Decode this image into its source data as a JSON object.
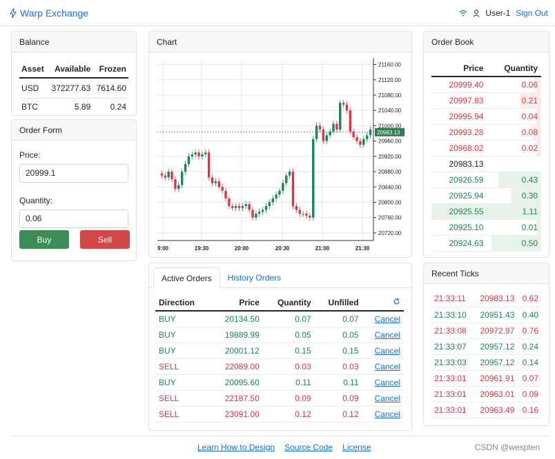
{
  "nav": {
    "brand": "Warp Exchange",
    "user": "User-1",
    "signout": "Sign Out"
  },
  "balance": {
    "title": "Balance",
    "headers": [
      "Asset",
      "Available",
      "Frozen"
    ],
    "rows": [
      [
        "USD",
        "372277.63",
        "7614.60"
      ],
      [
        "BTC",
        "5.89",
        "0.24"
      ]
    ]
  },
  "order_form": {
    "title": "Order Form",
    "price_label": "Price:",
    "price_value": "20999.1",
    "quantity_label": "Quantity:",
    "quantity_value": "0.06",
    "buy": "Buy",
    "sell": "Sell"
  },
  "chart": {
    "title": "Chart",
    "last_price": "20983.13",
    "y_ticks": [
      "21160.00",
      "21120.00",
      "21080.00",
      "21040.00",
      "21000.00",
      "20960.00",
      "20920.00",
      "20880.00",
      "20840.00",
      "20800.00",
      "20760.00",
      "20720.00"
    ],
    "x_ticks": [
      "9:00",
      "19:30",
      "20:00",
      "20:30",
      "21:00",
      "21:30"
    ]
  },
  "chart_data": {
    "type": "candlestick",
    "ylim": [
      20700,
      21170
    ],
    "last": 20983.13,
    "close": [
      20870,
      20865,
      20880,
      20860,
      20835,
      20845,
      20880,
      20900,
      20920,
      20925,
      20930,
      20920,
      20925,
      20930,
      20865,
      20850,
      20855,
      20840,
      20830,
      20810,
      20790,
      20785,
      20790,
      20785,
      20790,
      20795,
      20780,
      20760,
      20770,
      20775,
      20780,
      20790,
      20800,
      20810,
      20820,
      20830,
      20850,
      20870,
      20880,
      20790,
      20780,
      20770,
      20770,
      20765,
      20760,
      20965,
      21000,
      20990,
      20960,
      20975,
      20985,
      21005,
      20990,
      21060,
      21055,
      21040,
      20985,
      20970,
      20960,
      20950,
      20965,
      20975,
      20990
    ]
  },
  "orders": {
    "tabs": [
      "Active Orders",
      "History Orders"
    ],
    "headers": [
      "Direction",
      "Price",
      "Quantity",
      "Unfilled"
    ],
    "cancel": "Cancel",
    "rows": [
      {
        "dir": "BUY",
        "price": "20134.50",
        "qty": "0.07",
        "unfilled": "0.07"
      },
      {
        "dir": "BUY",
        "price": "19889.99",
        "qty": "0.05",
        "unfilled": "0.05"
      },
      {
        "dir": "BUY",
        "price": "20001.12",
        "qty": "0.15",
        "unfilled": "0.15"
      },
      {
        "dir": "SELL",
        "price": "22089.00",
        "qty": "0.03",
        "unfilled": "0.03"
      },
      {
        "dir": "BUY",
        "price": "20095.60",
        "qty": "0.11",
        "unfilled": "0.11"
      },
      {
        "dir": "SELL",
        "price": "22187.50",
        "qty": "0.09",
        "unfilled": "0.09"
      },
      {
        "dir": "SELL",
        "price": "23091.00",
        "qty": "0.12",
        "unfilled": "0.12"
      }
    ]
  },
  "order_book": {
    "title": "Order Book",
    "headers": [
      "Price",
      "Quantity"
    ],
    "asks": [
      [
        "20999.40",
        "0.06"
      ],
      [
        "20997.83",
        "0.21"
      ],
      [
        "20995.94",
        "0.04"
      ],
      [
        "20993.28",
        "0.08"
      ],
      [
        "20968.02",
        "0.02"
      ]
    ],
    "mid": "20983.13",
    "bids": [
      [
        "20926.59",
        "0.43"
      ],
      [
        "20925.94",
        "0.30"
      ],
      [
        "20925.55",
        "1.11"
      ],
      [
        "20925.10",
        "0.01"
      ],
      [
        "20924.63",
        "0.50"
      ]
    ]
  },
  "ticks": {
    "title": "Recent Ticks",
    "rows": [
      {
        "time": "21:33:11",
        "price": "20983.13",
        "qty": "0.62",
        "side": "red"
      },
      {
        "time": "21:33:10",
        "price": "20951.43",
        "qty": "0.40",
        "side": "green"
      },
      {
        "time": "21:33:08",
        "price": "20972.97",
        "qty": "0.76",
        "side": "red"
      },
      {
        "time": "21:33:07",
        "price": "20957.12",
        "qty": "0.24",
        "side": "green"
      },
      {
        "time": "21:33:03",
        "price": "20957.12",
        "qty": "0.14",
        "side": "green"
      },
      {
        "time": "21:33:01",
        "price": "20961.91",
        "qty": "0.07",
        "side": "red"
      },
      {
        "time": "21:33:01",
        "price": "20963.01",
        "qty": "0.09",
        "side": "red"
      },
      {
        "time": "21:33:01",
        "price": "20963.49",
        "qty": "0.16",
        "side": "red"
      }
    ]
  },
  "footer": {
    "links": [
      "Learn How to Design",
      "Source Code",
      "License"
    ],
    "watermark": "CSDN @wespten"
  },
  "colors": {
    "buy": "#198754",
    "sell": "#dc3545",
    "link": "#0d6efd",
    "last_price_tag": "#2e7d4f"
  }
}
